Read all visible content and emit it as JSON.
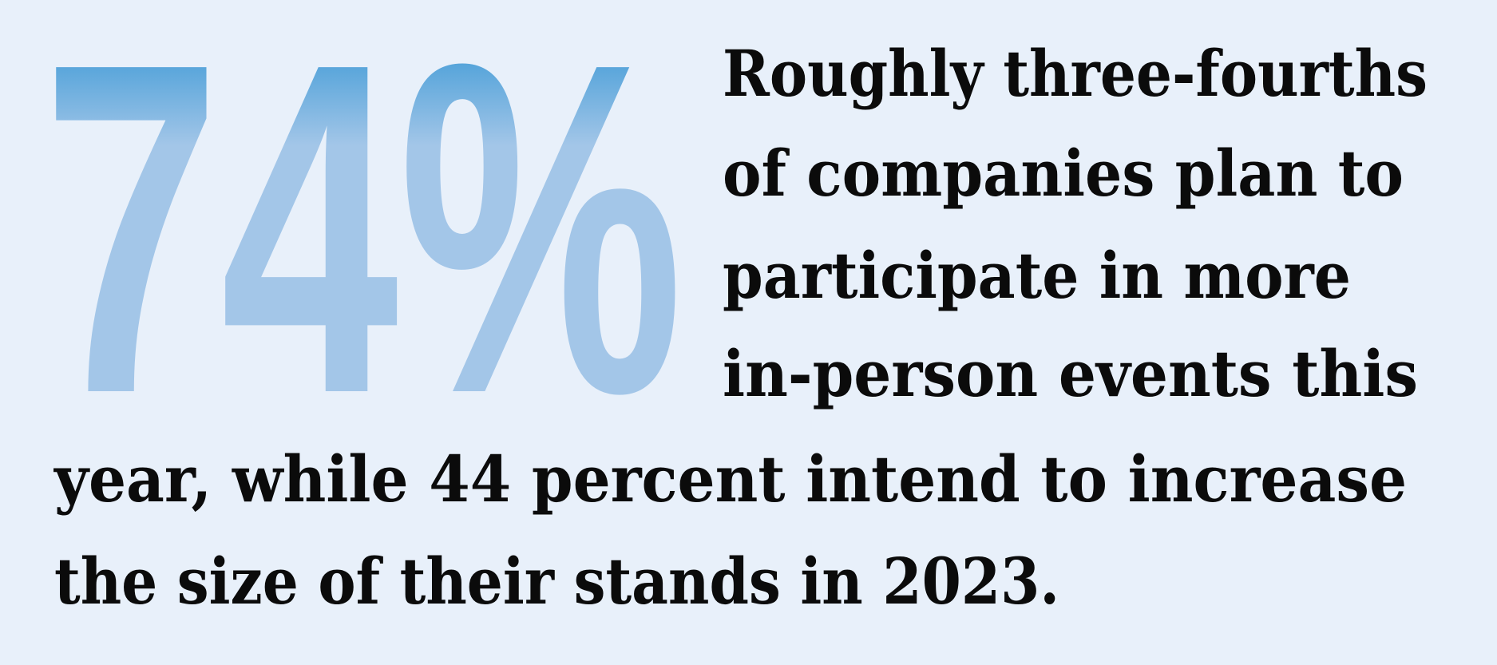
{
  "stat": "74%",
  "text_lines": [
    "Roughly three-fourths",
    "of companies plan to",
    "participate in more",
    "in-person events this",
    "year, while 44 percent intend to increase",
    "the size of their stands in 2023."
  ]
}
